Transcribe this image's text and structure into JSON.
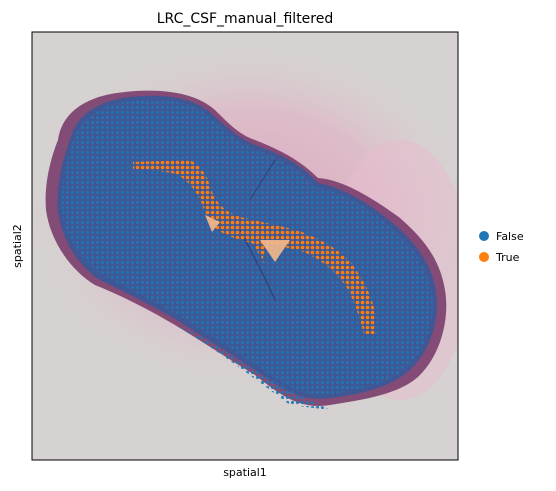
{
  "chart_data": {
    "type": "scatter",
    "title": "LRC_CSF_manual_filtered",
    "xlabel": "spatial1",
    "ylabel": "spatial2",
    "grid": false,
    "legend_placement": "right",
    "series": [
      {
        "name": "False",
        "color": "#1f77b4"
      },
      {
        "name": "True",
        "color": "#ff7f0e"
      }
    ],
    "background_image": "tissue-section",
    "colors": {
      "tissue": "#3f5794",
      "tissue_edge": "#7a3d6b",
      "stain_halo": "#e3b6c8",
      "slide": "#d6d2d1"
    }
  }
}
